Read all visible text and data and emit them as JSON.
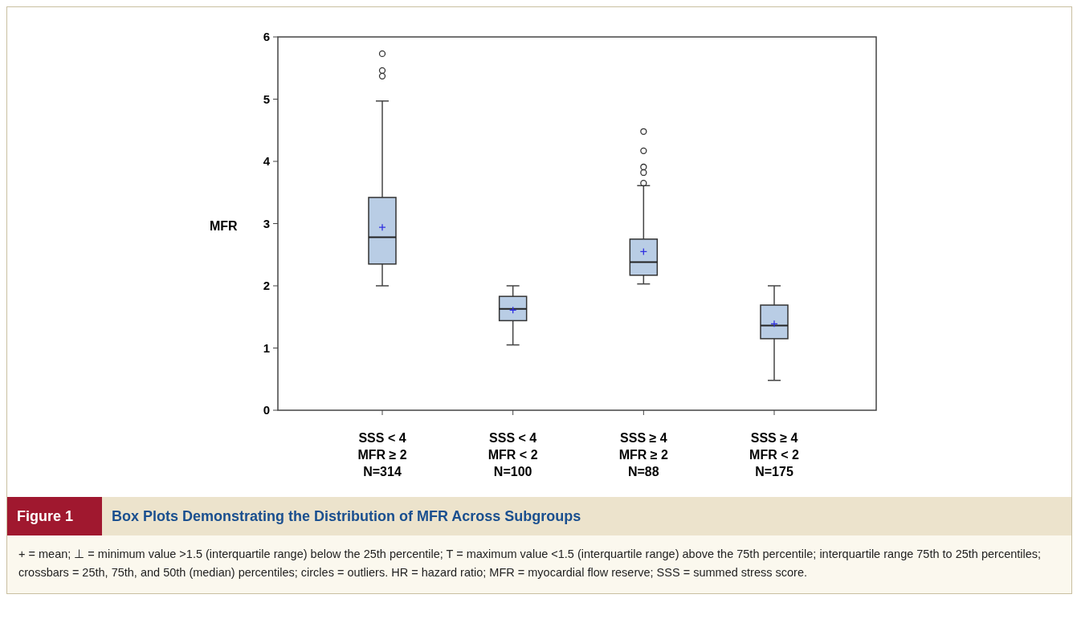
{
  "chart_data": {
    "type": "box",
    "ylabel": "MFR",
    "title": "Box Plots Demonstrating the Distribution of MFR Across Subgroups",
    "categories": [
      "SSS < 4\nMFR ≥ 2\nN=314",
      "SSS < 4\nMFR < 2\nN=100",
      "SSS ≥ 4\nMFR ≥ 2\nN=88",
      "SSS ≥ 4\nMFR < 2\nN=175"
    ],
    "color": "#b9cde5",
    "boxes": [
      {
        "low": 2.0,
        "q1": 2.35,
        "median": 2.78,
        "q3": 3.42,
        "high": 4.97,
        "mean": 2.94,
        "outliers": [
          5.73,
          5.46,
          5.37
        ]
      },
      {
        "low": 1.05,
        "q1": 1.44,
        "median": 1.63,
        "q3": 1.83,
        "high": 2.0,
        "mean": 1.61
      },
      {
        "low": 2.03,
        "q1": 2.17,
        "median": 2.38,
        "q3": 2.75,
        "high": 3.61,
        "mean": 2.55,
        "outliers": [
          4.48,
          4.17,
          3.91,
          3.82,
          3.65
        ]
      },
      {
        "low": 0.48,
        "q1": 1.15,
        "median": 1.36,
        "q3": 1.69,
        "high": 2.0,
        "mean": 1.39
      }
    ],
    "ylim": [
      0,
      6
    ],
    "yticks": [
      0,
      1,
      2,
      3,
      4,
      5,
      6
    ],
    "grid": false,
    "annotations": [
      "Figure 1",
      "+ = mean; ⊥ = minimum value >1.5 (interquartile range) below the 25th percentile; T = maximum value <1.5 (interquartile range) above the 75th percentile; interquartile range 75th to 25th percentiles; crossbars = 25th, 75th, and 50th (median) percentiles; circles = outliers. HR = hazard ratio; MFR = myocardial flow reserve; SSS = summed stress score."
    ]
  }
}
